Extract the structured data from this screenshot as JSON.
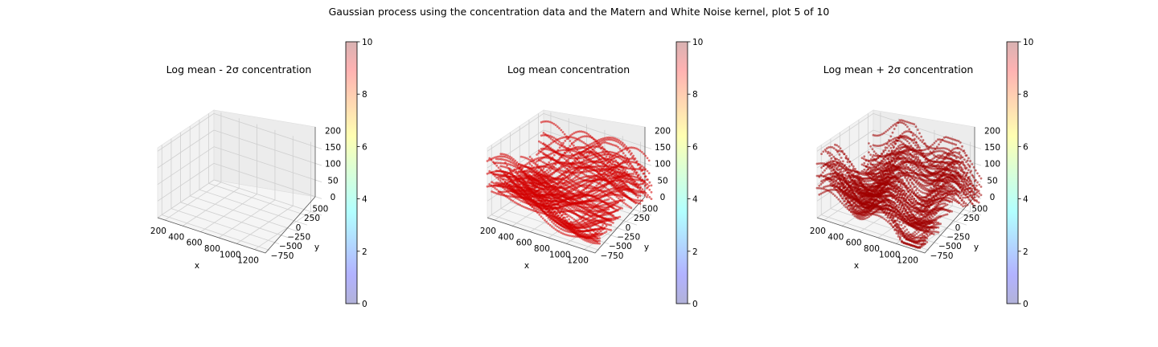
{
  "figure": {
    "suptitle": "Gaussian process using the  concentration data and the Matern and White Noise kernel, plot 5 of 10"
  },
  "chart_data": [
    {
      "type": "scatter",
      "subtype": "3d-scatter",
      "title": "Log mean - 2σ concentration",
      "xlabel": "x",
      "ylabel": "y",
      "zlabel": "",
      "xticks": [
        "200",
        "400",
        "600",
        "800",
        "1000",
        "1200"
      ],
      "yticks": [
        "−750",
        "−500",
        "−250",
        "0",
        "250",
        "500"
      ],
      "zticks": [
        "0",
        "50",
        "100",
        "150",
        "200"
      ],
      "xlim": [
        100,
        1250
      ],
      "ylim": [
        -850,
        650
      ],
      "zlim": [
        0,
        210
      ],
      "points": "none visible",
      "grid": true,
      "colorbar": {
        "ticks": [
          "0",
          "2",
          "4",
          "6",
          "8",
          "10"
        ],
        "range": [
          0,
          10
        ],
        "colormap": "jet",
        "alpha": 0.3
      }
    },
    {
      "type": "scatter",
      "subtype": "3d-scatter",
      "title": "Log mean concentration",
      "xlabel": "x",
      "ylabel": "y",
      "zlabel": "",
      "xticks": [
        "200",
        "400",
        "600",
        "800",
        "1000",
        "1200"
      ],
      "yticks": [
        "−750",
        "−500",
        "−250",
        "0",
        "250",
        "500"
      ],
      "zticks": [
        "0",
        "50",
        "100",
        "150",
        "200"
      ],
      "xlim": [
        100,
        1250
      ],
      "ylim": [
        -850,
        650
      ],
      "zlim": [
        0,
        210
      ],
      "point_color": "#d40000",
      "value_level": 9,
      "grid": true,
      "colorbar": {
        "ticks": [
          "0",
          "2",
          "4",
          "6",
          "8",
          "10"
        ],
        "range": [
          0,
          10
        ],
        "colormap": "jet",
        "alpha": 0.3
      }
    },
    {
      "type": "scatter",
      "subtype": "3d-scatter",
      "title": "Log mean + 2σ concentration",
      "xlabel": "x",
      "ylabel": "y",
      "zlabel": "",
      "xticks": [
        "200",
        "400",
        "600",
        "800",
        "1000",
        "1200"
      ],
      "yticks": [
        "−750",
        "−500",
        "−250",
        "0",
        "250",
        "500"
      ],
      "zticks": [
        "0",
        "50",
        "100",
        "150",
        "200"
      ],
      "xlim": [
        100,
        1250
      ],
      "ylim": [
        -850,
        650
      ],
      "zlim": [
        0,
        210
      ],
      "point_color": "#a00000",
      "value_level": 10,
      "grid": true,
      "colorbar": {
        "ticks": [
          "0",
          "2",
          "4",
          "6",
          "8",
          "10"
        ],
        "range": [
          0,
          10
        ],
        "colormap": "jet",
        "alpha": 0.3
      }
    }
  ]
}
